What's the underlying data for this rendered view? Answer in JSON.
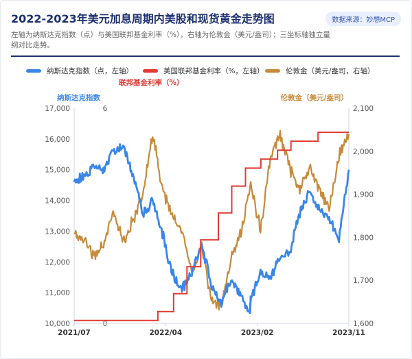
{
  "header": {
    "title": "2022-2023年美元加息周期内美股和现货黄金走势图",
    "source": "数据来源：妙想MCP",
    "subtitle": "左轴为纳斯达克指数（点）与美国联邦基金利率（%），右轴为伦敦金（美元/盎司）；三坐标轴独立量纲对比走势。"
  },
  "colors": {
    "nasdaq": "#3a86e8",
    "fedrate": "#e03a33",
    "gold": "#c68a3a",
    "title": "#1d2f6f"
  },
  "chart_data": {
    "type": "line",
    "x_tick_labels": [
      "2021/07",
      "2022/04",
      "2023/02",
      "2023/11"
    ],
    "x_range": [
      "2021-07",
      "2023-11"
    ],
    "axes": {
      "left_outer": {
        "label": "纳斯达克指数",
        "range": [
          10000,
          17000
        ],
        "ticks": [
          "10,000",
          "11,000",
          "12,000",
          "13,000",
          "14,000",
          "15,000",
          "16,000",
          "17,000"
        ]
      },
      "left_inner": {
        "label": "联邦基金利率（%）",
        "range": [
          0,
          6
        ],
        "ticks": [
          "0",
          "6"
        ]
      },
      "right": {
        "label": "伦敦金（美元/盎司）",
        "range": [
          1600,
          2100
        ],
        "ticks": [
          "1,600",
          "1,700",
          "1,800",
          "1,900",
          "2,000",
          "2,100"
        ]
      }
    },
    "grid": false,
    "legend_position": "top",
    "series": [
      {
        "name": "纳斯达克指数（点，左轴）",
        "axis": "left_outer",
        "points": [
          [
            "2021-07",
            14600
          ],
          [
            "2021-08",
            14800
          ],
          [
            "2021-09",
            15100
          ],
          [
            "2021-10",
            14950
          ],
          [
            "2021-11",
            15600
          ],
          [
            "2021-12",
            15800
          ],
          [
            "2022-01",
            14800
          ],
          [
            "2022-02",
            13600
          ],
          [
            "2022-03",
            14000
          ],
          [
            "2022-04",
            12900
          ],
          [
            "2022-05",
            11600
          ],
          [
            "2022-06",
            11100
          ],
          [
            "2022-07",
            11700
          ],
          [
            "2022-08",
            12600
          ],
          [
            "2022-09",
            11200
          ],
          [
            "2022-10",
            10700
          ],
          [
            "2022-11",
            11400
          ],
          [
            "2022-12",
            10900
          ],
          [
            "2022-12-28",
            10350
          ],
          [
            "2023-01",
            10800
          ],
          [
            "2023-02",
            11600
          ],
          [
            "2023-03",
            11500
          ],
          [
            "2023-04",
            12200
          ],
          [
            "2023-05",
            12300
          ],
          [
            "2023-06",
            13600
          ],
          [
            "2023-07",
            14300
          ],
          [
            "2023-08",
            13700
          ],
          [
            "2023-09",
            13400
          ],
          [
            "2023-10",
            12800
          ],
          [
            "2023-11",
            15000
          ]
        ]
      },
      {
        "name": "美国联邦基金利率（%，左轴）",
        "axis": "left_inner",
        "steps": [
          [
            "2021-07",
            0.08
          ],
          [
            "2022-03-17",
            0.33
          ],
          [
            "2022-05-05",
            0.83
          ],
          [
            "2022-06-16",
            1.58
          ],
          [
            "2022-07-28",
            2.33
          ],
          [
            "2022-09-22",
            3.08
          ],
          [
            "2022-11-03",
            3.83
          ],
          [
            "2022-12-15",
            4.33
          ],
          [
            "2023-02-02",
            4.58
          ],
          [
            "2023-03-23",
            4.83
          ],
          [
            "2023-05-04",
            5.08
          ],
          [
            "2023-07-27",
            5.33
          ],
          [
            "2023-11",
            5.33
          ]
        ]
      },
      {
        "name": "伦敦金（美元/盎司，右轴）",
        "axis": "right",
        "points": [
          [
            "2021-07",
            1810
          ],
          [
            "2021-08",
            1790
          ],
          [
            "2021-09",
            1755
          ],
          [
            "2021-10",
            1783
          ],
          [
            "2021-11",
            1860
          ],
          [
            "2021-12",
            1790
          ],
          [
            "2022-01",
            1840
          ],
          [
            "2022-02",
            1900
          ],
          [
            "2022-03",
            2040
          ],
          [
            "2022-04",
            1910
          ],
          [
            "2022-05",
            1850
          ],
          [
            "2022-06",
            1820
          ],
          [
            "2022-07",
            1720
          ],
          [
            "2022-08",
            1780
          ],
          [
            "2022-09",
            1650
          ],
          [
            "2022-10",
            1640
          ],
          [
            "2022-11",
            1750
          ],
          [
            "2022-12",
            1810
          ],
          [
            "2023-01",
            1920
          ],
          [
            "2023-02",
            1820
          ],
          [
            "2023-03",
            1980
          ],
          [
            "2023-04",
            2040
          ],
          [
            "2023-05",
            1960
          ],
          [
            "2023-06",
            1910
          ],
          [
            "2023-07",
            1960
          ],
          [
            "2023-08",
            1910
          ],
          [
            "2023-09",
            1870
          ],
          [
            "2023-10",
            1990
          ],
          [
            "2023-11",
            2040
          ]
        ]
      }
    ]
  }
}
